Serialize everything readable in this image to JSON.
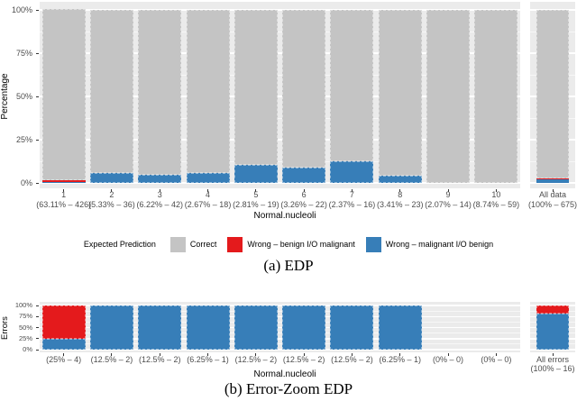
{
  "colors": {
    "correct": "#c4c4c4",
    "wrong_benign": "#e41a1c",
    "wrong_malignant": "#377eb8",
    "panel_bg": "#ebebeb",
    "grid_major": "#ffffff",
    "tick_text": "#4d4d4d",
    "axis_text": "#000000"
  },
  "legend": {
    "title": "Expected Prediction",
    "items": [
      {
        "key": "correct",
        "label": "Correct",
        "color": "#c4c4c4"
      },
      {
        "key": "wrong_benign",
        "label": "Wrong – benign I/O malignant",
        "color": "#e41a1c"
      },
      {
        "key": "wrong_malignant",
        "label": "Wrong – malignant I/O benign",
        "color": "#377eb8"
      }
    ]
  },
  "captions": {
    "a": "(a) EDP",
    "b": "(b) Error-Zoom EDP"
  },
  "chart_data": [
    {
      "id": "edp",
      "type": "bar",
      "stacked": true,
      "ylabel": "Percentage",
      "xlabel": "Normal.nucleoli",
      "ylim": [
        0,
        100
      ],
      "yticks": [
        "0%",
        "25%",
        "50%",
        "75%",
        "100%"
      ],
      "grid": true,
      "categories": [
        "1",
        "2",
        "3",
        "4",
        "5",
        "6",
        "7",
        "8",
        "9",
        "10"
      ],
      "category_sublabels": [
        "(63.11% – 426)",
        "(5.33% – 36)",
        "(6.22% – 42)",
        "(2.67% – 18)",
        "(2.81% – 19)",
        "(3.26% – 22)",
        "(2.37% – 16)",
        "(3.41% – 23)",
        "(2.07% – 14)",
        "(8.74% – 59)"
      ],
      "facet_category": "All data",
      "facet_sublabel": "(100% – 675)",
      "series": [
        {
          "key": "wrong_malignant",
          "name": "Wrong – malignant I/O benign",
          "color": "#377eb8",
          "values": [
            0.23,
            5.56,
            4.76,
            5.56,
            10.53,
            9.09,
            12.5,
            4.35,
            0,
            0
          ],
          "facet_value": 1.93
        },
        {
          "key": "wrong_benign",
          "name": "Wrong – benign I/O malignant",
          "color": "#e41a1c",
          "values": [
            0.7,
            0,
            0,
            0,
            0,
            0,
            0,
            0,
            0,
            0
          ],
          "facet_value": 0.44
        },
        {
          "key": "correct",
          "name": "Correct",
          "color": "#c4c4c4",
          "values": [
            99.07,
            94.44,
            95.24,
            94.44,
            89.47,
            90.91,
            87.5,
            95.65,
            100,
            100
          ],
          "facet_value": 97.63
        }
      ]
    },
    {
      "id": "error-zoom-edp",
      "type": "bar",
      "stacked": true,
      "ylabel": "Errors",
      "xlabel": "Normal.nucleoli",
      "ylim": [
        0,
        100
      ],
      "yticks": [
        "0%",
        "25%",
        "50%",
        "75%",
        "100%"
      ],
      "grid": true,
      "category_sublabels": [
        "(25% – 4)",
        "(12.5% – 2)",
        "(12.5% – 2)",
        "(6.25% – 1)",
        "(12.5% – 2)",
        "(12.5% – 2)",
        "(12.5% – 2)",
        "(6.25% – 1)",
        "(0% – 0)",
        "(0% – 0)"
      ],
      "facet_category": "All errors",
      "facet_sublabel": "(100% – 16)",
      "series": [
        {
          "key": "wrong_malignant",
          "name": "Wrong – malignant I/O benign",
          "color": "#377eb8",
          "values": [
            25,
            100,
            100,
            100,
            100,
            100,
            100,
            100,
            0,
            0
          ],
          "facet_value": 81.25
        },
        {
          "key": "wrong_benign",
          "name": "Wrong – benign I/O malignant",
          "color": "#e41a1c",
          "values": [
            75,
            0,
            0,
            0,
            0,
            0,
            0,
            0,
            0,
            0
          ],
          "facet_value": 18.75
        }
      ]
    }
  ]
}
